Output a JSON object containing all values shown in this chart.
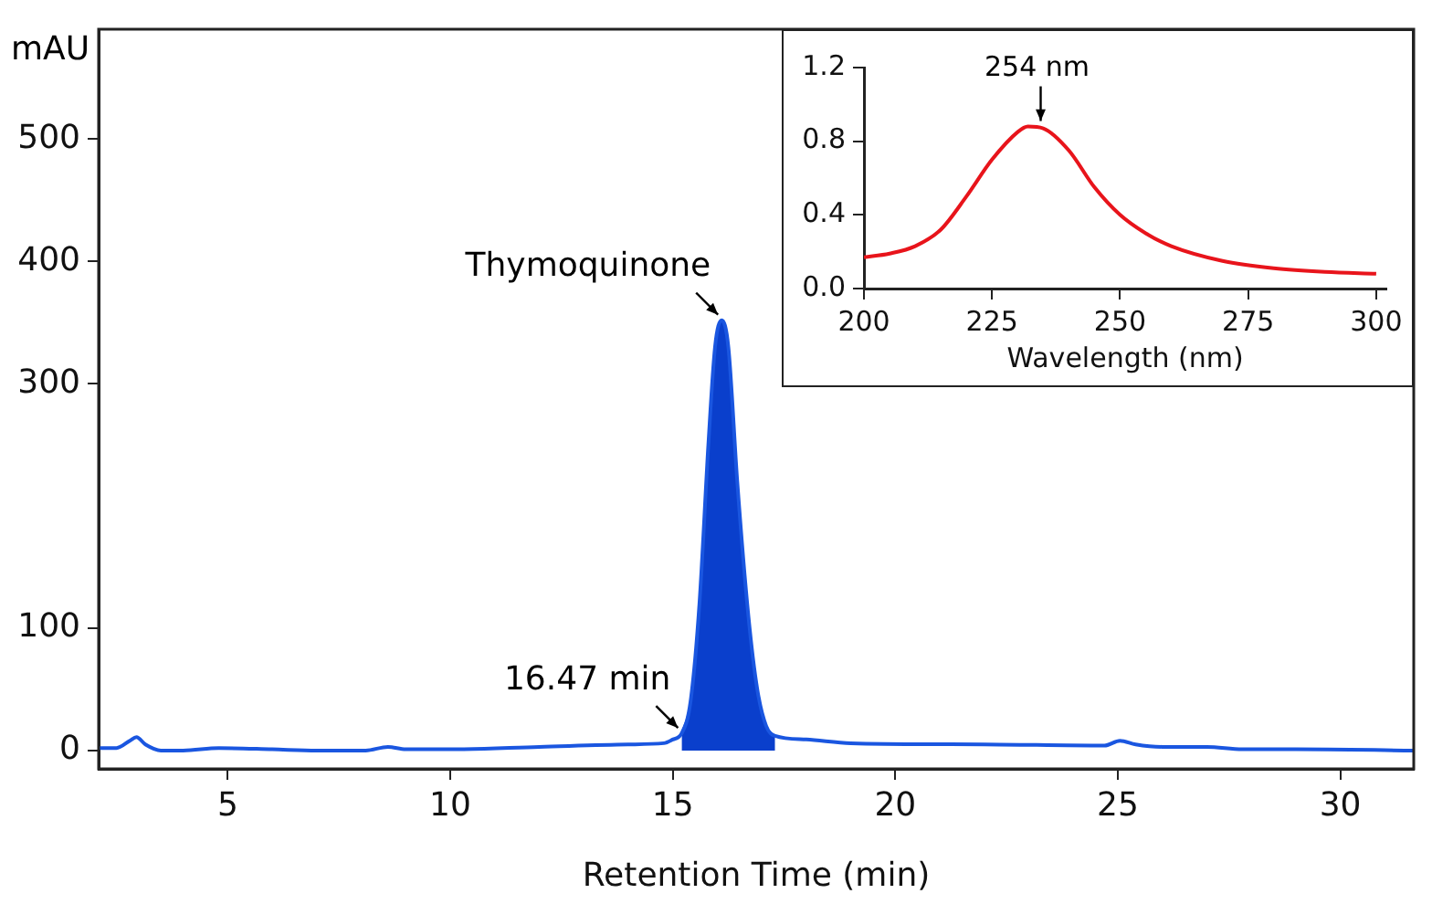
{
  "chart_data": [
    {
      "type": "line",
      "xlabel": "Retention Time (min)",
      "ylabel": "mAU",
      "xlim": [
        2.1,
        31.65
      ],
      "xticks": [
        5,
        10,
        15,
        20,
        25,
        30
      ],
      "ylim": [
        -15,
        590
      ],
      "yticks": [
        0,
        100,
        300,
        400,
        500
      ],
      "annotations": [
        {
          "text": "Thymoquinone",
          "x": 16.1,
          "y": 352
        },
        {
          "text": "16.47 min",
          "x": 15.2,
          "y": 14
        }
      ],
      "series": [
        {
          "color": "#1a56e0",
          "x": [
            2.1,
            2.5,
            2.8,
            2.95,
            3.15,
            3.5,
            4.0,
            4.8,
            6,
            7,
            8.1,
            8.6,
            9.0,
            10,
            12,
            14,
            14.8,
            15.0,
            15.2,
            15.4,
            15.6,
            15.8,
            15.95,
            16.1,
            16.25,
            16.45,
            16.7,
            16.9,
            17.1,
            17.3,
            18,
            19,
            22,
            24.7,
            25.05,
            25.4,
            26,
            27,
            27.8,
            29,
            31.65
          ],
          "values": [
            2,
            2,
            8,
            11,
            5,
            0,
            0,
            2,
            1,
            0,
            0,
            3,
            1,
            1,
            3,
            5,
            6,
            9,
            14,
            40,
            120,
            250,
            330,
            352,
            330,
            220,
            110,
            50,
            20,
            12,
            9,
            6,
            5,
            4,
            8,
            5,
            3,
            3,
            1,
            1,
            0
          ]
        },
        {
          "type": "area",
          "color": "#0a3fcc",
          "x": [
            15.2,
            15.4,
            15.6,
            15.8,
            15.95,
            16.1,
            16.25,
            16.45,
            16.7,
            16.9,
            17.1,
            17.3
          ],
          "values": [
            14,
            40,
            120,
            250,
            330,
            352,
            330,
            220,
            110,
            50,
            20,
            12
          ]
        }
      ]
    },
    {
      "type": "line",
      "xlabel": "Wavelength (nm)",
      "xlim": [
        200,
        302
      ],
      "xticks": [
        200,
        225,
        250,
        275,
        300
      ],
      "ylim": [
        0,
        1.2
      ],
      "yticks": [
        {
          "value": 0,
          "label": "0.0"
        },
        0.4,
        0.8,
        1.2
      ],
      "annotations": [
        {
          "text": "254 nm",
          "x": 234.5,
          "y": 0.88
        }
      ],
      "series": [
        {
          "color": "#e8141b",
          "x": [
            200,
            205,
            210,
            215,
            220,
            225,
            230,
            232,
            235,
            240,
            245,
            250,
            255,
            260,
            270,
            280,
            290,
            300
          ],
          "values": [
            0.17,
            0.19,
            0.23,
            0.32,
            0.5,
            0.7,
            0.85,
            0.88,
            0.87,
            0.75,
            0.55,
            0.4,
            0.3,
            0.23,
            0.15,
            0.11,
            0.09,
            0.08
          ]
        }
      ]
    }
  ]
}
